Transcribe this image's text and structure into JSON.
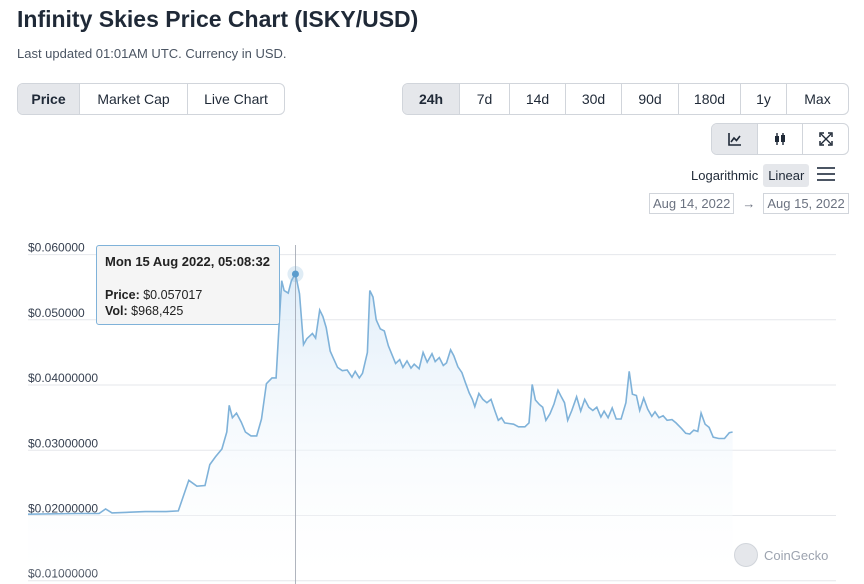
{
  "header": {
    "title": "Infinity Skies Price Chart (ISKY/USD)",
    "subtitle": "Last updated 01:01AM UTC. Currency in USD."
  },
  "metric_tabs": [
    {
      "label": "Price",
      "active": true
    },
    {
      "label": "Market Cap",
      "active": false
    },
    {
      "label": "Live Chart",
      "active": false
    }
  ],
  "range_tabs": [
    {
      "label": "24h",
      "active": true
    },
    {
      "label": "7d",
      "active": false
    },
    {
      "label": "14d",
      "active": false
    },
    {
      "label": "30d",
      "active": false
    },
    {
      "label": "90d",
      "active": false
    },
    {
      "label": "180d",
      "active": false
    },
    {
      "label": "1y",
      "active": false
    },
    {
      "label": "Max",
      "active": false
    }
  ],
  "view_buttons": [
    {
      "icon": "line-chart-icon",
      "active": true
    },
    {
      "icon": "candlestick-icon",
      "active": false
    },
    {
      "icon": "expand-icon",
      "active": false
    }
  ],
  "scale": {
    "logarithmic": "Logarithmic",
    "linear": "Linear",
    "active": "Linear"
  },
  "date_range": {
    "from": "Aug 14, 2022",
    "arrow": "→",
    "to": "Aug 15, 2022"
  },
  "tooltip": {
    "date": "Mon 15 Aug 2022, 05:08:32",
    "price_label": "Price:",
    "price_value": "$0.057017",
    "vol_label": "Vol:",
    "vol_value": "$968,425"
  },
  "watermark": "CoinGecko",
  "colors": {
    "line": "#7fb2d9",
    "fill": "#eaf3fb",
    "grid": "#e5e7eb"
  },
  "chart_data": {
    "type": "area",
    "y_tick_labels": [
      "$0.060000",
      "$0.050000",
      "$0.04000000",
      "$0.03000000",
      "$0.02000000",
      "$0.01000000"
    ],
    "y_ticks": [
      0.06,
      0.05,
      0.04,
      0.03,
      0.02,
      0.01
    ],
    "ylim": [
      0.0095,
      0.0653
    ],
    "xlim": [
      0,
      1
    ],
    "grid": true,
    "series": [
      {
        "points": [
          [
            0.0,
            0.0202
          ],
          [
            0.06,
            0.0203
          ],
          [
            0.088,
            0.0203
          ],
          [
            0.096,
            0.021
          ],
          [
            0.104,
            0.0204
          ],
          [
            0.145,
            0.0206
          ],
          [
            0.171,
            0.0206
          ],
          [
            0.186,
            0.0207
          ],
          [
            0.199,
            0.0254
          ],
          [
            0.209,
            0.0245
          ],
          [
            0.219,
            0.0246
          ],
          [
            0.225,
            0.0278
          ],
          [
            0.232,
            0.029
          ],
          [
            0.24,
            0.0302
          ],
          [
            0.246,
            0.0328
          ],
          [
            0.249,
            0.0369
          ],
          [
            0.253,
            0.035
          ],
          [
            0.258,
            0.0357
          ],
          [
            0.264,
            0.0343
          ],
          [
            0.269,
            0.0328
          ],
          [
            0.276,
            0.0322
          ],
          [
            0.283,
            0.0322
          ],
          [
            0.289,
            0.0348
          ],
          [
            0.295,
            0.0402
          ],
          [
            0.302,
            0.0411
          ],
          [
            0.307,
            0.0411
          ],
          [
            0.311,
            0.0498
          ],
          [
            0.314,
            0.056
          ],
          [
            0.317,
            0.0545
          ],
          [
            0.322,
            0.0541
          ],
          [
            0.326,
            0.056
          ],
          [
            0.331,
            0.0571
          ],
          [
            0.336,
            0.054
          ],
          [
            0.341,
            0.0462
          ],
          [
            0.345,
            0.0471
          ],
          [
            0.352,
            0.0479
          ],
          [
            0.356,
            0.0472
          ],
          [
            0.361,
            0.0515
          ],
          [
            0.365,
            0.0505
          ],
          [
            0.369,
            0.0488
          ],
          [
            0.374,
            0.0452
          ],
          [
            0.378,
            0.0441
          ],
          [
            0.383,
            0.0427
          ],
          [
            0.389,
            0.0422
          ],
          [
            0.395,
            0.0423
          ],
          [
            0.401,
            0.0412
          ],
          [
            0.405,
            0.0421
          ],
          [
            0.41,
            0.0411
          ],
          [
            0.414,
            0.0418
          ],
          [
            0.42,
            0.045
          ],
          [
            0.423,
            0.0545
          ],
          [
            0.427,
            0.0535
          ],
          [
            0.431,
            0.05
          ],
          [
            0.436,
            0.0486
          ],
          [
            0.441,
            0.0483
          ],
          [
            0.446,
            0.046
          ],
          [
            0.451,
            0.0445
          ],
          [
            0.455,
            0.0433
          ],
          [
            0.46,
            0.0439
          ],
          [
            0.464,
            0.0427
          ],
          [
            0.469,
            0.0437
          ],
          [
            0.474,
            0.0426
          ],
          [
            0.478,
            0.0432
          ],
          [
            0.484,
            0.0425
          ],
          [
            0.489,
            0.045
          ],
          [
            0.494,
            0.0435
          ],
          [
            0.5,
            0.0448
          ],
          [
            0.504,
            0.0436
          ],
          [
            0.509,
            0.0442
          ],
          [
            0.514,
            0.043
          ],
          [
            0.518,
            0.0434
          ],
          [
            0.523,
            0.0454
          ],
          [
            0.527,
            0.0445
          ],
          [
            0.532,
            0.0428
          ],
          [
            0.537,
            0.0419
          ],
          [
            0.541,
            0.0405
          ],
          [
            0.546,
            0.0388
          ],
          [
            0.55,
            0.0378
          ],
          [
            0.553,
            0.0367
          ],
          [
            0.558,
            0.0387
          ],
          [
            0.563,
            0.0378
          ],
          [
            0.568,
            0.0373
          ],
          [
            0.573,
            0.0378
          ],
          [
            0.578,
            0.036
          ],
          [
            0.582,
            0.0346
          ],
          [
            0.586,
            0.035
          ],
          [
            0.59,
            0.0342
          ],
          [
            0.595,
            0.0341
          ],
          [
            0.601,
            0.034
          ],
          [
            0.607,
            0.0336
          ],
          [
            0.615,
            0.0336
          ],
          [
            0.62,
            0.0342
          ],
          [
            0.624,
            0.0401
          ],
          [
            0.628,
            0.0377
          ],
          [
            0.633,
            0.037
          ],
          [
            0.637,
            0.0366
          ],
          [
            0.641,
            0.0346
          ],
          [
            0.646,
            0.0356
          ],
          [
            0.651,
            0.0371
          ],
          [
            0.656,
            0.0392
          ],
          [
            0.66,
            0.0382
          ],
          [
            0.664,
            0.0373
          ],
          [
            0.668,
            0.0346
          ],
          [
            0.673,
            0.0361
          ],
          [
            0.679,
            0.0382
          ],
          [
            0.684,
            0.036
          ],
          [
            0.689,
            0.0378
          ],
          [
            0.694,
            0.0366
          ],
          [
            0.699,
            0.0361
          ],
          [
            0.704,
            0.0366
          ],
          [
            0.709,
            0.0351
          ],
          [
            0.713,
            0.036
          ],
          [
            0.718,
            0.035
          ],
          [
            0.723,
            0.0365
          ],
          [
            0.728,
            0.0348
          ],
          [
            0.734,
            0.0348
          ],
          [
            0.74,
            0.0373
          ],
          [
            0.744,
            0.0421
          ],
          [
            0.748,
            0.0386
          ],
          [
            0.753,
            0.0384
          ],
          [
            0.757,
            0.0361
          ],
          [
            0.762,
            0.038
          ],
          [
            0.767,
            0.0363
          ],
          [
            0.772,
            0.0352
          ],
          [
            0.776,
            0.0359
          ],
          [
            0.781,
            0.035
          ],
          [
            0.786,
            0.0353
          ],
          [
            0.791,
            0.0346
          ],
          [
            0.797,
            0.0347
          ],
          [
            0.802,
            0.0342
          ],
          [
            0.809,
            0.0333
          ],
          [
            0.814,
            0.0326
          ],
          [
            0.819,
            0.0325
          ],
          [
            0.824,
            0.0331
          ],
          [
            0.829,
            0.0329
          ],
          [
            0.833,
            0.0357
          ],
          [
            0.838,
            0.034
          ],
          [
            0.843,
            0.0335
          ],
          [
            0.848,
            0.032
          ],
          [
            0.855,
            0.0318
          ],
          [
            0.862,
            0.0318
          ],
          [
            0.868,
            0.0327
          ],
          [
            0.872,
            0.0328
          ]
        ]
      }
    ],
    "highlight": {
      "x": 0.331,
      "y": 0.057017
    }
  }
}
